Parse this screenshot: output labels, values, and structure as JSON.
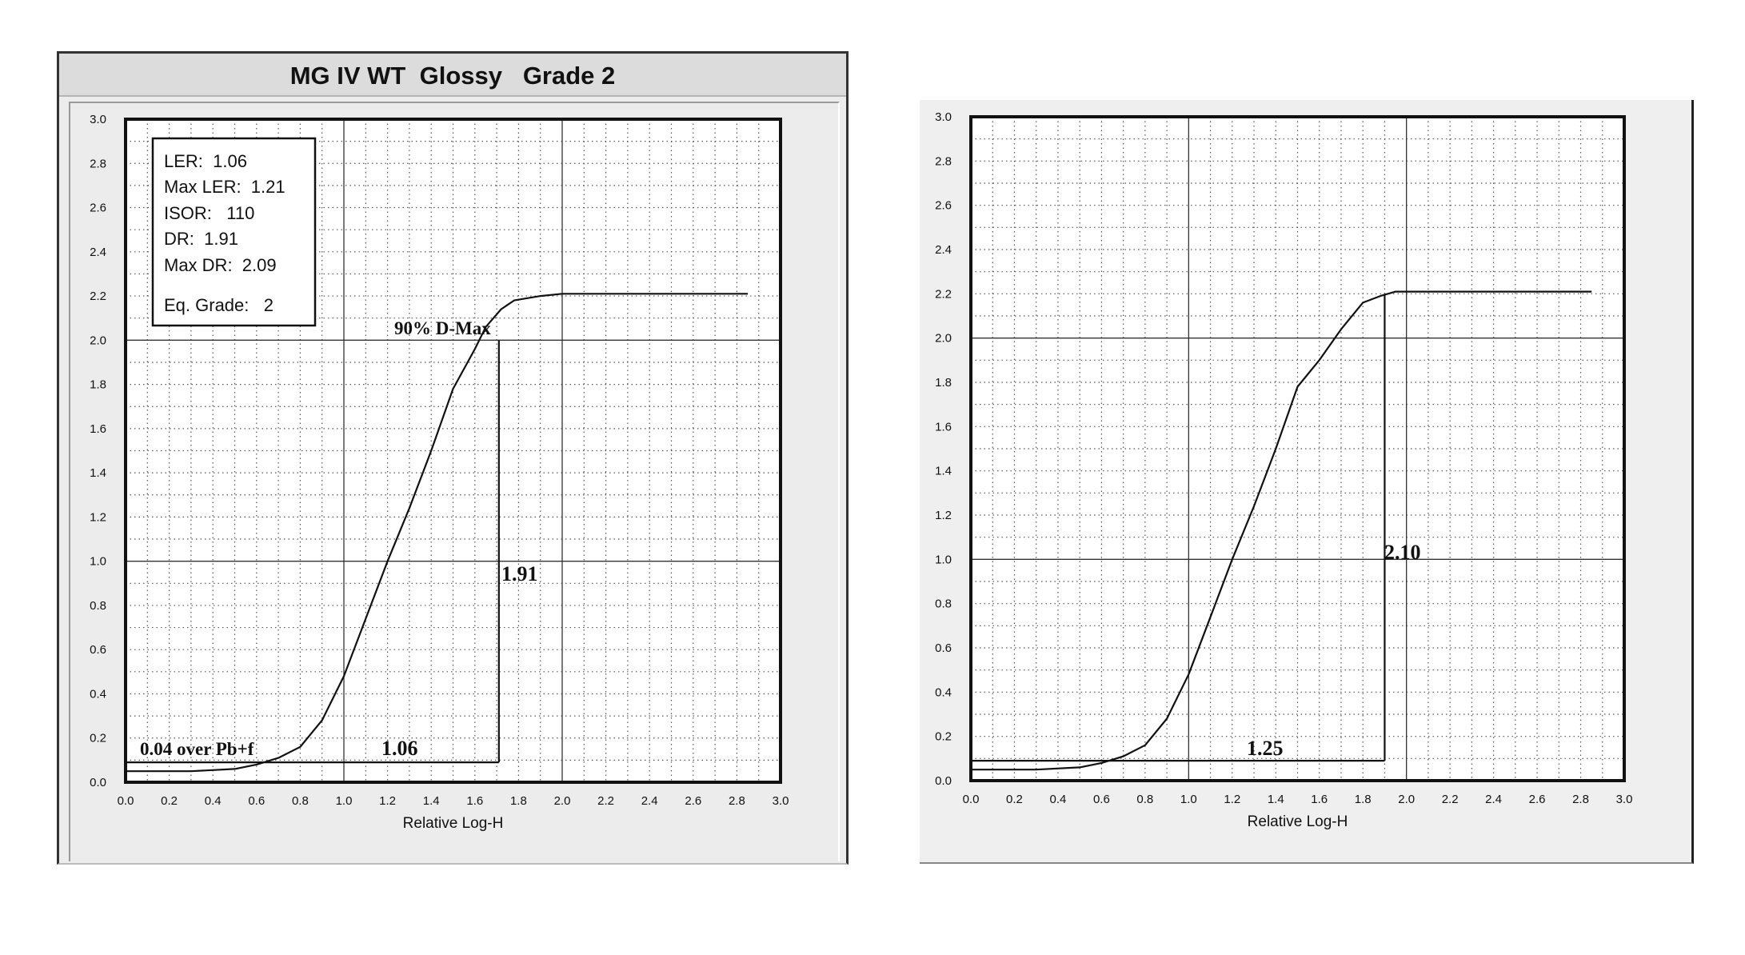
{
  "chart_data": [
    {
      "type": "line",
      "title": "MG IV WT  Glossy   Grade 2",
      "xlabel": "Relative Log-H",
      "ylabel": "",
      "xlim": [
        0.0,
        3.0
      ],
      "ylim": [
        0.0,
        3.0
      ],
      "grid": true,
      "x_ticks": [
        "0.0",
        "0.2",
        "0.4",
        "0.6",
        "0.8",
        "1.0",
        "1.2",
        "1.4",
        "1.6",
        "1.8",
        "2.0",
        "2.2",
        "2.4",
        "2.6",
        "2.8",
        "3.0"
      ],
      "y_ticks": [
        "0.0",
        "0.2",
        "0.4",
        "0.6",
        "0.8",
        "1.0",
        "1.2",
        "1.4",
        "1.6",
        "1.8",
        "2.0",
        "2.2",
        "2.4",
        "2.6",
        "2.8",
        "3.0"
      ],
      "series": [
        {
          "x": [
            0.0,
            0.3,
            0.5,
            0.6,
            0.7,
            0.8,
            0.9,
            1.0,
            1.1,
            1.2,
            1.3,
            1.4,
            1.5,
            1.6,
            1.65,
            1.72,
            1.78,
            1.9,
            2.0,
            2.1,
            2.3,
            2.5,
            2.7,
            2.85
          ],
          "y": [
            0.05,
            0.05,
            0.06,
            0.08,
            0.11,
            0.16,
            0.28,
            0.48,
            0.74,
            1.0,
            1.24,
            1.5,
            1.78,
            1.96,
            2.06,
            2.14,
            2.18,
            2.2,
            2.21,
            2.21,
            2.21,
            2.21,
            2.21,
            2.21
          ]
        }
      ],
      "info_box": {
        "ler": "LER:  1.06",
        "max_ler": "Max LER:  1.21",
        "isor": "ISOR:   110",
        "dr": "DR:  1.91",
        "max_dr": "Max DR:  2.09",
        "eq_grade": "Eq. Grade:   2"
      },
      "annotations": {
        "dmax_label": "90% D-Max",
        "dr_value": "1.91",
        "ler_value": "1.06",
        "base_label": "0.04 over Pb+f"
      },
      "markers": {
        "base_density": 0.09,
        "x_start": 0.0,
        "x_end": 1.71,
        "y_top": 2.0
      }
    },
    {
      "type": "line",
      "title": "",
      "xlabel": "Relative Log-H",
      "ylabel": "",
      "xlim": [
        0.0,
        3.0
      ],
      "ylim": [
        0.0,
        3.0
      ],
      "grid": true,
      "x_ticks": [
        "0.0",
        "0.2",
        "0.4",
        "0.6",
        "0.8",
        "1.0",
        "1.2",
        "1.4",
        "1.6",
        "1.8",
        "2.0",
        "2.2",
        "2.4",
        "2.6",
        "2.8",
        "3.0"
      ],
      "y_ticks": [
        "0.0",
        "0.2",
        "0.4",
        "0.6",
        "0.8",
        "1.0",
        "1.2",
        "1.4",
        "1.6",
        "1.8",
        "2.0",
        "2.2",
        "2.4",
        "2.6",
        "2.8",
        "3.0"
      ],
      "series": [
        {
          "x": [
            0.0,
            0.3,
            0.5,
            0.6,
            0.7,
            0.8,
            0.9,
            1.0,
            1.1,
            1.2,
            1.3,
            1.4,
            1.5,
            1.6,
            1.7,
            1.8,
            1.88,
            1.95,
            2.05,
            2.3,
            2.5,
            2.7,
            2.85
          ],
          "y": [
            0.05,
            0.05,
            0.06,
            0.08,
            0.11,
            0.16,
            0.28,
            0.48,
            0.74,
            1.0,
            1.24,
            1.5,
            1.78,
            1.9,
            2.04,
            2.16,
            2.19,
            2.21,
            2.21,
            2.21,
            2.21,
            2.21,
            2.21
          ]
        }
      ],
      "annotations": {
        "dr_value": "2.10",
        "ler_value": "1.25"
      },
      "markers": {
        "base_density": 0.09,
        "x_start": 0.0,
        "x_end": 1.9,
        "y_top": 2.2
      }
    }
  ]
}
